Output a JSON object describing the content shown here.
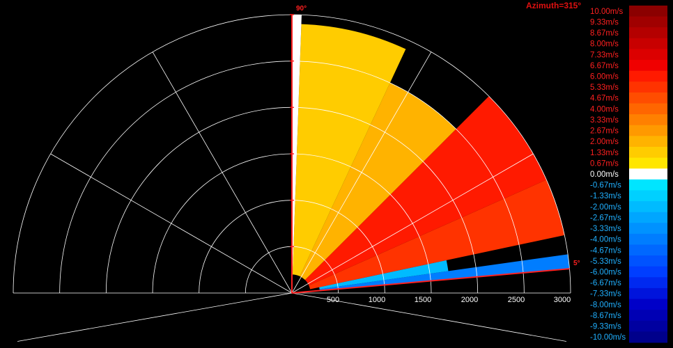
{
  "chart_data": {
    "type": "heatmap",
    "subtype": "radar-ppi-sector",
    "title": "Azimuth=315°",
    "radial_axis": {
      "ticks": [
        500,
        1000,
        1500,
        2000,
        2500,
        3000
      ],
      "range": [
        0,
        3000
      ]
    },
    "angle_labels": {
      "start": "5°",
      "end": "90°"
    },
    "sector_angles_deg": [
      5,
      90
    ],
    "grid": true,
    "colorbar": {
      "placement": "right",
      "labels": [
        "10.00m/s",
        "9.33m/s",
        "8.67m/s",
        "8.00m/s",
        "7.33m/s",
        "6.67m/s",
        "6.00m/s",
        "5.33m/s",
        "4.67m/s",
        "4.00m/s",
        "3.33m/s",
        "2.67m/s",
        "2.00m/s",
        "1.33m/s",
        "0.67m/s",
        "0.00m/s",
        "-0.67m/s",
        "-1.33m/s",
        "-2.00m/s",
        "-2.67m/s",
        "-3.33m/s",
        "-4.00m/s",
        "-4.67m/s",
        "-5.33m/s",
        "-6.00m/s",
        "-6.67m/s",
        "-7.33m/s",
        "-8.00m/s",
        "-8.67m/s",
        "-9.33m/s",
        "-10.00m/s"
      ],
      "colors": [
        "#8b0000",
        "#a00000",
        "#b40000",
        "#c80000",
        "#dc0000",
        "#f00000",
        "#ff1a00",
        "#ff3300",
        "#ff4d00",
        "#ff6600",
        "#ff8000",
        "#ff9900",
        "#ffb300",
        "#ffcc00",
        "#ffe600",
        "#ffffff",
        "#00e5ff",
        "#00d0ff",
        "#00bbff",
        "#00a6ff",
        "#0092ff",
        "#007dff",
        "#0068ff",
        "#0053ff",
        "#003eff",
        "#0029f0",
        "#0014dc",
        "#0000c8",
        "#0000b4",
        "#0000a0",
        "#00008b"
      ]
    },
    "velocity_field": [
      {
        "angle_range": [
          5,
          8
        ],
        "dist_range": [
          300,
          3000
        ],
        "value": -4.0
      },
      {
        "angle_range": [
          8,
          12
        ],
        "dist_range": [
          300,
          1700
        ],
        "value": -2.0
      },
      {
        "angle_range": [
          12,
          24
        ],
        "dist_range": [
          200,
          3000
        ],
        "value": 5.33
      },
      {
        "angle_range": [
          24,
          45
        ],
        "dist_range": [
          200,
          3000
        ],
        "value": 6.0
      },
      {
        "angle_range": [
          45,
          65
        ],
        "dist_range": [
          200,
          2500
        ],
        "value": 2.0
      },
      {
        "angle_range": [
          65,
          88
        ],
        "dist_range": [
          200,
          2900
        ],
        "value": 1.33
      },
      {
        "angle_range": [
          88,
          90
        ],
        "dist_range": [
          0,
          3000
        ],
        "value": 0.0
      }
    ]
  }
}
